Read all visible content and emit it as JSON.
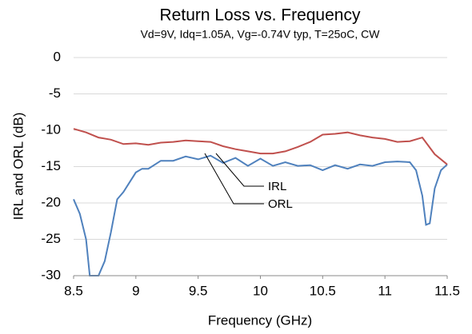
{
  "chart_data": {
    "type": "line",
    "title": "Return Loss vs. Frequency",
    "subtitle": "Vd=9V, Idq=1.05A, Vg=-0.74V typ, T=25oC, CW",
    "x_label": "Frequency (GHz)",
    "y_label": "IRL and ORL (dB)",
    "xlim": [
      8.5,
      11.5
    ],
    "xticks": [
      8.5,
      9,
      9.5,
      10,
      10.5,
      11,
      11.5
    ],
    "ylim": [
      -30,
      0
    ],
    "yticks": [
      0,
      -5,
      -10,
      -15,
      -20,
      -25,
      -30
    ],
    "grid": true,
    "series": [
      {
        "name": "IRL",
        "color": "#4f81bd",
        "x": [
          8.5,
          8.55,
          8.6,
          8.63,
          8.7,
          8.75,
          8.8,
          8.85,
          8.9,
          9.0,
          9.05,
          9.1,
          9.2,
          9.3,
          9.4,
          9.5,
          9.6,
          9.7,
          9.8,
          9.9,
          10.0,
          10.1,
          10.2,
          10.3,
          10.4,
          10.5,
          10.6,
          10.7,
          10.8,
          10.9,
          11.0,
          11.1,
          11.2,
          11.25,
          11.3,
          11.33,
          11.36,
          11.4,
          11.45,
          11.5
        ],
        "values": [
          -19.5,
          -21.5,
          -25,
          -30,
          -30,
          -28,
          -24,
          -19.5,
          -18.5,
          -15.8,
          -15.3,
          -15.3,
          -14.2,
          -14.2,
          -13.6,
          -14,
          -13.5,
          -14.5,
          -13.8,
          -14.9,
          -13.9,
          -14.9,
          -14.4,
          -14.9,
          -14.8,
          -15.5,
          -14.8,
          -15.3,
          -14.7,
          -14.9,
          -14.4,
          -14.3,
          -14.4,
          -15.5,
          -19,
          -23,
          -22.8,
          -18,
          -15.5,
          -14.7
        ]
      },
      {
        "name": "ORL",
        "color": "#c0504d",
        "x": [
          8.5,
          8.6,
          8.7,
          8.8,
          8.9,
          9.0,
          9.1,
          9.2,
          9.3,
          9.4,
          9.5,
          9.6,
          9.7,
          9.8,
          9.9,
          10.0,
          10.1,
          10.2,
          10.3,
          10.4,
          10.5,
          10.6,
          10.7,
          10.8,
          10.9,
          11.0,
          11.1,
          11.2,
          11.3,
          11.4,
          11.5
        ],
        "values": [
          -9.8,
          -10.3,
          -11,
          -11.3,
          -11.9,
          -11.8,
          -12,
          -11.7,
          -11.6,
          -11.4,
          -11.5,
          -11.6,
          -12.2,
          -12.6,
          -12.9,
          -13.2,
          -13.2,
          -12.9,
          -12.3,
          -11.6,
          -10.6,
          -10.5,
          -10.3,
          -10.7,
          -11,
          -11.2,
          -11.6,
          -11.5,
          -11,
          -13.3,
          -14.7
        ]
      }
    ]
  }
}
